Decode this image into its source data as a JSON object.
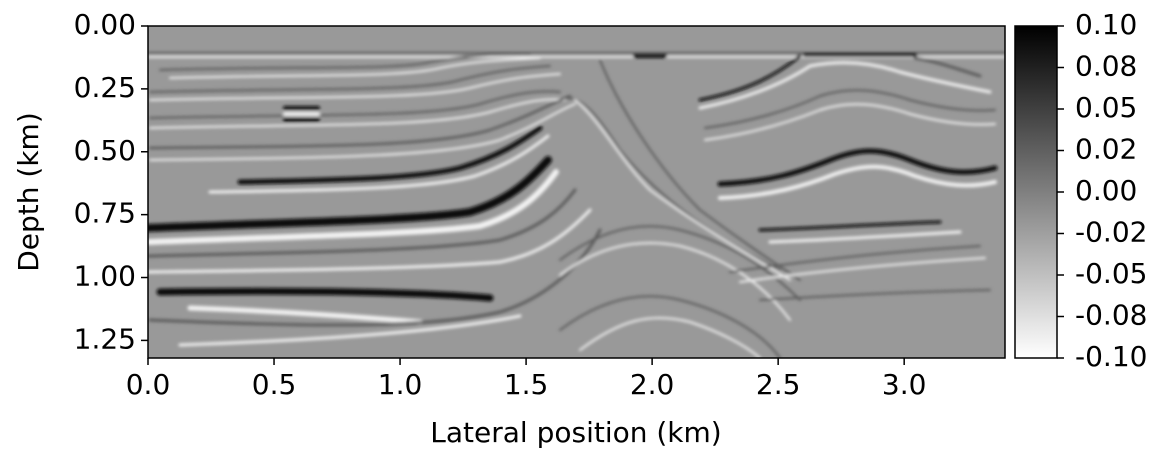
{
  "chart_data": {
    "type": "image",
    "xlabel": "Lateral position (km)",
    "ylabel": "Depth (km)",
    "xlim": [
      0,
      3.4
    ],
    "ylim": [
      0,
      1.32
    ],
    "y_inverted": true,
    "xticks": [
      {
        "value": 0,
        "label": "0.0"
      },
      0.5,
      {
        "value": 1,
        "label": "1.0"
      },
      1.5,
      {
        "value": 2,
        "label": "2.0"
      },
      2.5,
      {
        "value": 3,
        "label": "3.0"
      }
    ],
    "yticks": [
      {
        "value": 0,
        "label": "0.00"
      },
      0.25,
      {
        "value": 0.5,
        "label": "0.50"
      },
      0.75,
      {
        "value": 1,
        "label": "1.00"
      },
      1.25
    ],
    "colorbar": {
      "clim": [
        -0.1,
        0.1
      ],
      "colors": [
        "#ffffff",
        "#000000"
      ],
      "ticks": [
        {
          "value": 0.1,
          "label": "0.10"
        },
        {
          "value": 0.075,
          "label": "0.08"
        },
        {
          "value": 0.05,
          "label": "0.05"
        },
        {
          "value": 0.025,
          "label": "0.02"
        },
        {
          "value": 0,
          "label": "0.00"
        },
        {
          "value": -0.025,
          "label": "-0.02"
        },
        {
          "value": -0.05,
          "label": "-0.05"
        },
        {
          "value": -0.075,
          "label": "-0.08"
        },
        {
          "value": -0.1,
          "label": "-0.10"
        }
      ]
    }
  }
}
